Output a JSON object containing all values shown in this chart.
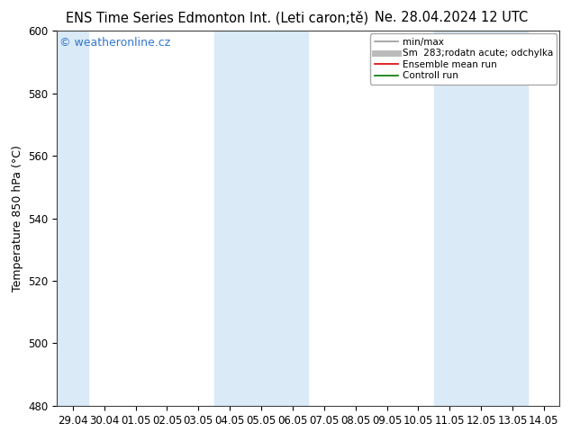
{
  "title_left": "ENS Time Series Edmonton Int. (Leti caron;tě)",
  "title_right": "Ne. 28.04.2024 12 UTC",
  "ylabel": "Temperature 850 hPa (°C)",
  "ylim": [
    480,
    600
  ],
  "yticks": [
    480,
    500,
    520,
    540,
    560,
    580,
    600
  ],
  "xtick_labels": [
    "29.04",
    "30.04",
    "01.05",
    "02.05",
    "03.05",
    "04.05",
    "05.05",
    "06.05",
    "07.05",
    "08.05",
    "09.05",
    "10.05",
    "11.05",
    "12.05",
    "13.05",
    "14.05"
  ],
  "xtick_positions": [
    0,
    1,
    2,
    3,
    4,
    5,
    6,
    7,
    8,
    9,
    10,
    11,
    12,
    13,
    14,
    15
  ],
  "shaded_columns": [
    0,
    5,
    6,
    7,
    12,
    13,
    14
  ],
  "shaded_color": "#daeaf7",
  "watermark": "© weatheronline.cz",
  "watermark_color": "#3377cc",
  "legend_entries": [
    {
      "label": "min/max",
      "color": "#999999",
      "lw": 1.2
    },
    {
      "label": "Sm  283;rodatn acute; odchylka",
      "color": "#bbbbbb",
      "lw": 5
    },
    {
      "label": "Ensemble mean run",
      "color": "#dd0000",
      "lw": 1.2
    },
    {
      "label": "Controll run",
      "color": "#007700",
      "lw": 1.2
    }
  ],
  "background_color": "#ffffff",
  "plot_bg_color": "#ffffff",
  "title_fontsize": 10.5,
  "tick_fontsize": 8.5,
  "ylabel_fontsize": 9,
  "watermark_fontsize": 9
}
